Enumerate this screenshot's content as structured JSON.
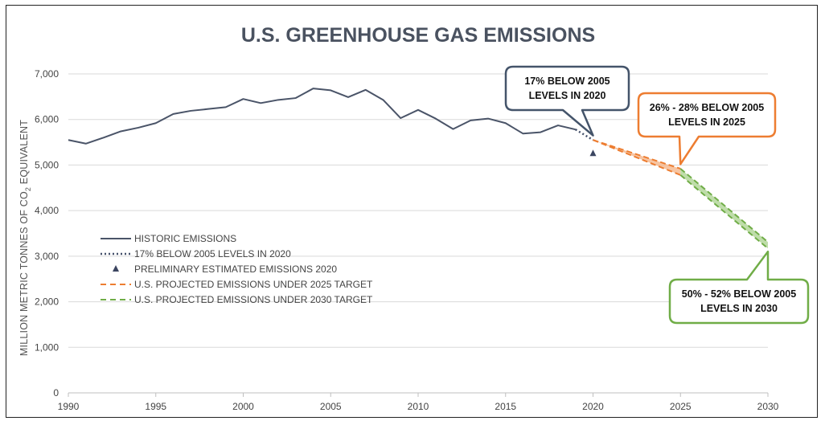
{
  "chart_data": {
    "type": "line",
    "title": "U.S. GREENHOUSE GAS EMISSIONS",
    "ylabel_parts": [
      "MILLION METRIC TONNES OF CO",
      "2",
      " EQUIVALENT"
    ],
    "xlabel": "",
    "xlim": [
      1990,
      2030
    ],
    "ylim": [
      0,
      7000
    ],
    "xticks": [
      1990,
      1995,
      2000,
      2005,
      2010,
      2015,
      2020,
      2025,
      2030
    ],
    "yticks": [
      0,
      1000,
      2000,
      3000,
      4000,
      5000,
      6000,
      7000
    ],
    "ytick_labels": [
      "0",
      "1,000",
      "2,000",
      "3,000",
      "4,000",
      "5,000",
      "6,000",
      "7,000"
    ],
    "grid": true,
    "legend_position": "bottom-left",
    "colors": {
      "historic": "#4a5468",
      "target2020": "#44506a",
      "preliminary": "#3b4560",
      "target2025": "#ed7d31",
      "target2030": "#70ad47",
      "band2025": "#f4b183",
      "band2030": "#a9d18e"
    },
    "series": [
      {
        "name": "HISTORIC EMISSIONS",
        "style": "solid",
        "x": [
          1990,
          1991,
          1992,
          1993,
          1994,
          1995,
          1996,
          1997,
          1998,
          1999,
          2000,
          2001,
          2002,
          2003,
          2004,
          2005,
          2006,
          2007,
          2008,
          2009,
          2010,
          2011,
          2012,
          2013,
          2014,
          2015,
          2016,
          2017,
          2018,
          2019
        ],
        "y": [
          5550,
          5470,
          5600,
          5740,
          5820,
          5920,
          6120,
          6190,
          6230,
          6270,
          6450,
          6360,
          6430,
          6470,
          6680,
          6640,
          6490,
          6650,
          6430,
          6030,
          6210,
          6020,
          5790,
          5980,
          6020,
          5920,
          5690,
          5720,
          5870,
          5780
        ]
      },
      {
        "name": "17% BELOW 2005 LEVELS IN 2020",
        "style": "dotted",
        "x": [
          2019,
          2020
        ],
        "y": [
          5780,
          5550
        ]
      },
      {
        "name": "PRELIMINARY ESTIMATED EMISSIONS 2020",
        "style": "marker",
        "x": [
          2020
        ],
        "y": [
          5250
        ]
      },
      {
        "name": "U.S. PROJECTED EMISSIONS UNDER 2025 TARGET",
        "style": "dashed",
        "band": {
          "x": [
            2020,
            2025
          ],
          "upper": [
            5550,
            4920
          ],
          "lower": [
            5550,
            4780
          ]
        }
      },
      {
        "name": "U.S. PROJECTED EMISSIONS UNDER 2030 TARGET",
        "style": "dashed",
        "band": {
          "x": [
            2025,
            2030
          ],
          "upper": [
            4920,
            3310
          ],
          "lower": [
            4780,
            3170
          ]
        }
      }
    ],
    "annotations": [
      {
        "lines": [
          "17% BELOW 2005",
          "LEVELS IN 2020"
        ],
        "target": [
          2020,
          5650
        ],
        "color": "#44546a"
      },
      {
        "lines": [
          "26% - 28% BELOW 2005",
          "LEVELS IN 2025"
        ],
        "target": [
          2025,
          5020
        ],
        "color": "#ed7d31"
      },
      {
        "lines": [
          "50% - 52% BELOW 2005",
          "LEVELS IN 2030"
        ],
        "target": [
          2030,
          3100
        ],
        "color": "#70ad47"
      }
    ]
  }
}
